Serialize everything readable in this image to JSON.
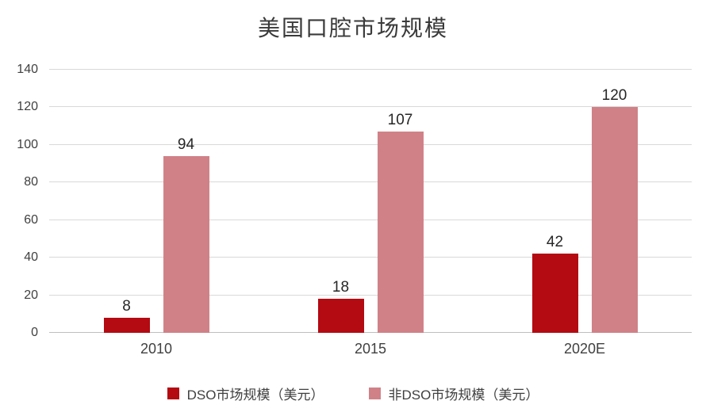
{
  "title": "美国口腔市场规模",
  "chart_data": {
    "type": "bar",
    "title": "美国口腔市场规模",
    "categories": [
      "2010",
      "2015",
      "2020E"
    ],
    "series": [
      {
        "name": "DSO市场规模（美元）",
        "color": "#b40a12",
        "values": [
          8,
          18,
          42
        ]
      },
      {
        "name": "非DSO市场规模（美元）",
        "color": "#d08187",
        "values": [
          94,
          107,
          120
        ]
      }
    ],
    "ylim": [
      0,
      140
    ],
    "yticks": [
      0,
      20,
      40,
      60,
      80,
      100,
      120,
      140
    ],
    "grid": true,
    "legend_position": "bottom",
    "colors": {
      "gridline": "#d9d9d9",
      "baseline": "#bfbfbf",
      "axis_text": "#404040",
      "label_text": "#262626"
    }
  }
}
